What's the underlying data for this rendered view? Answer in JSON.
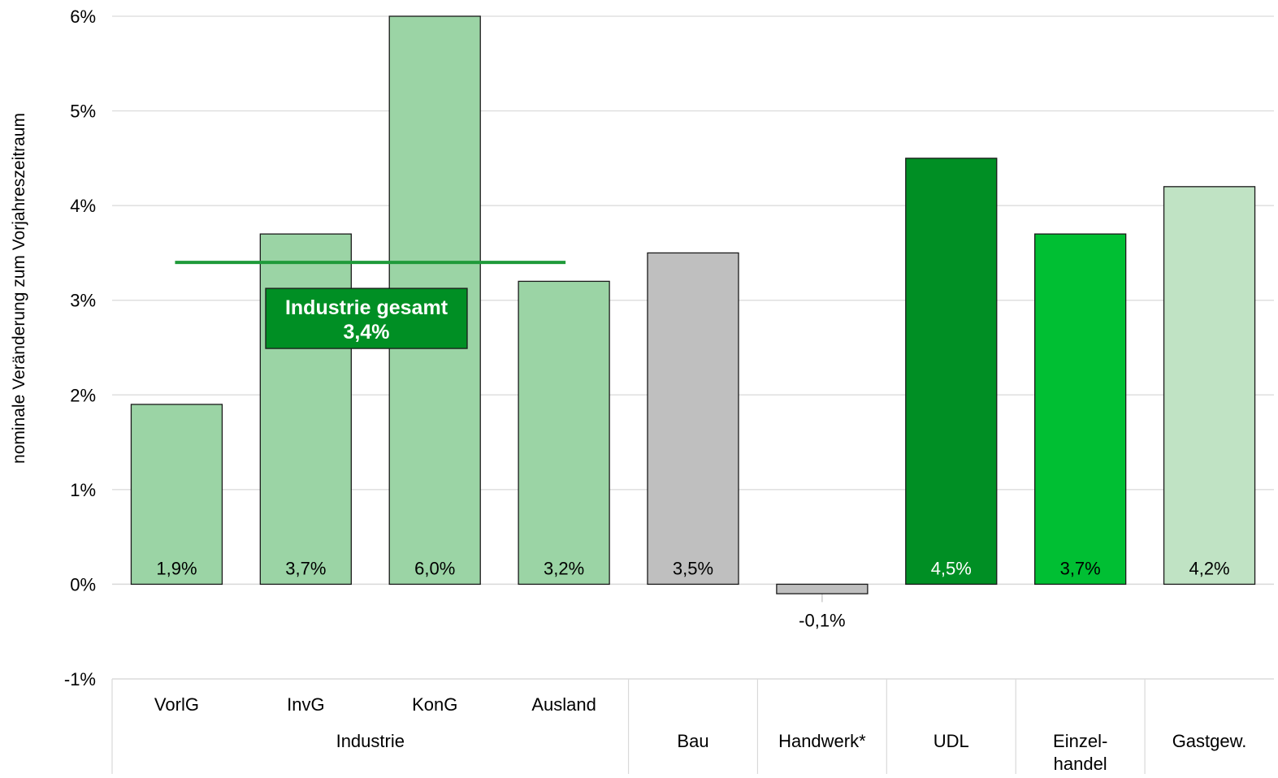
{
  "chart_data": {
    "type": "bar",
    "ylabel": "nominale Veränderung zum Vorjahreszeitraum",
    "ylim": [
      -1,
      6
    ],
    "yticks": [
      -1,
      0,
      1,
      2,
      3,
      4,
      5,
      6
    ],
    "ytick_labels": [
      "-1%",
      "0%",
      "1%",
      "2%",
      "3%",
      "4%",
      "5%",
      "6%"
    ],
    "grid": "horizontal",
    "categories": [
      "VorlG",
      "InvG",
      "KonG",
      "Ausland",
      "Bau",
      "Handwerk*",
      "UDL",
      "Einzel- handel",
      "Gastgew."
    ],
    "group_labels": [
      "Industrie",
      "Bau",
      "Handwerk*",
      "UDL",
      "Einzel-",
      "Gastgew."
    ],
    "group_label_second_line": "handel",
    "values": [
      1.9,
      3.7,
      6.0,
      3.2,
      3.5,
      -0.1,
      4.5,
      3.7,
      4.2
    ],
    "value_labels": [
      "1,9%",
      "3,7%",
      "6,0%",
      "3,2%",
      "3,5%",
      "-0,1%",
      "4,5%",
      "3,7%",
      "4,2%"
    ],
    "colors": [
      "#9bd4a5",
      "#9bd4a5",
      "#9bd4a5",
      "#9bd4a5",
      "#bfbfbf",
      "#bfbfbf",
      "#008f24",
      "#00bf33",
      "#c0e3c4"
    ],
    "value_label_colors": [
      "#000000",
      "#000000",
      "#000000",
      "#000000",
      "#000000",
      "#000000",
      "#ffffff",
      "#000000",
      "#000000"
    ],
    "reference_line": {
      "value": 3.4,
      "color": "#1f9a3a",
      "label_line1": "Industrie gesamt",
      "label_line2": "3,4%",
      "label_bg": "#008f24",
      "label_color": "#ffffff"
    }
  }
}
